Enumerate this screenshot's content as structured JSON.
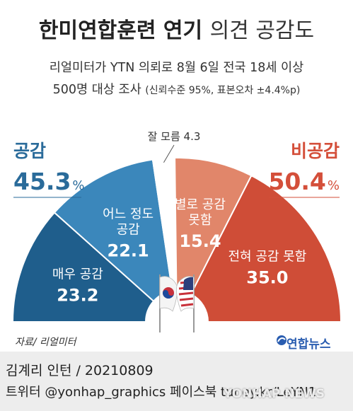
{
  "header": {
    "title_bold": "한미연합훈련 연기",
    "title_thin": "의견 공감도",
    "subtitle_line1": "리얼미터가 YTN 의뢰로 8월 6일 전국 18세 이상",
    "subtitle_line2_main": "500명 대상 조사",
    "subtitle_line2_note": "(신뢰수준 95%, 표본오차 ±4.4%p)"
  },
  "chart_data": {
    "type": "pie",
    "shape": "half-donut",
    "groups": [
      {
        "label": "공감",
        "total": 45.3,
        "unit": "%",
        "color": "#2a6b9a"
      },
      {
        "label": "비공감",
        "total": 50.4,
        "unit": "%",
        "color": "#d44f3a"
      }
    ],
    "slices": [
      {
        "label": "매우 공감",
        "value": 23.2,
        "color": "#1f5e8c"
      },
      {
        "label": "어느 정도 공감",
        "label_lines": [
          "어느 정도",
          "공감"
        ],
        "value": 22.1,
        "color": "#3b87bb"
      },
      {
        "label": "잘 모름",
        "value": 4.3,
        "color": "#ffffff"
      },
      {
        "label": "별로 공감 못함",
        "label_lines": [
          "별로 공감",
          "못함"
        ],
        "value": 15.4,
        "color": "#e1866a"
      },
      {
        "label": "전혀 공감 못함",
        "value": 35.0,
        "color": "#cf4d37"
      }
    ]
  },
  "footer": {
    "source": "자료/ 리얼미터",
    "logo_text": "연합뉴스",
    "byline": "김계리 인턴 / 20210809",
    "social": "트위터 @yonhap_graphics  페이스북 tuney.kr/LeYN1",
    "watermark": "YONHAP NEWS"
  },
  "colors": {
    "positive": "#2a6b9a",
    "negative": "#d44f3a",
    "footer_bg": "#ededed"
  },
  "icons": [
    "south-korea-flag-icon",
    "us-flag-icon",
    "yonhap-logo-icon"
  ]
}
